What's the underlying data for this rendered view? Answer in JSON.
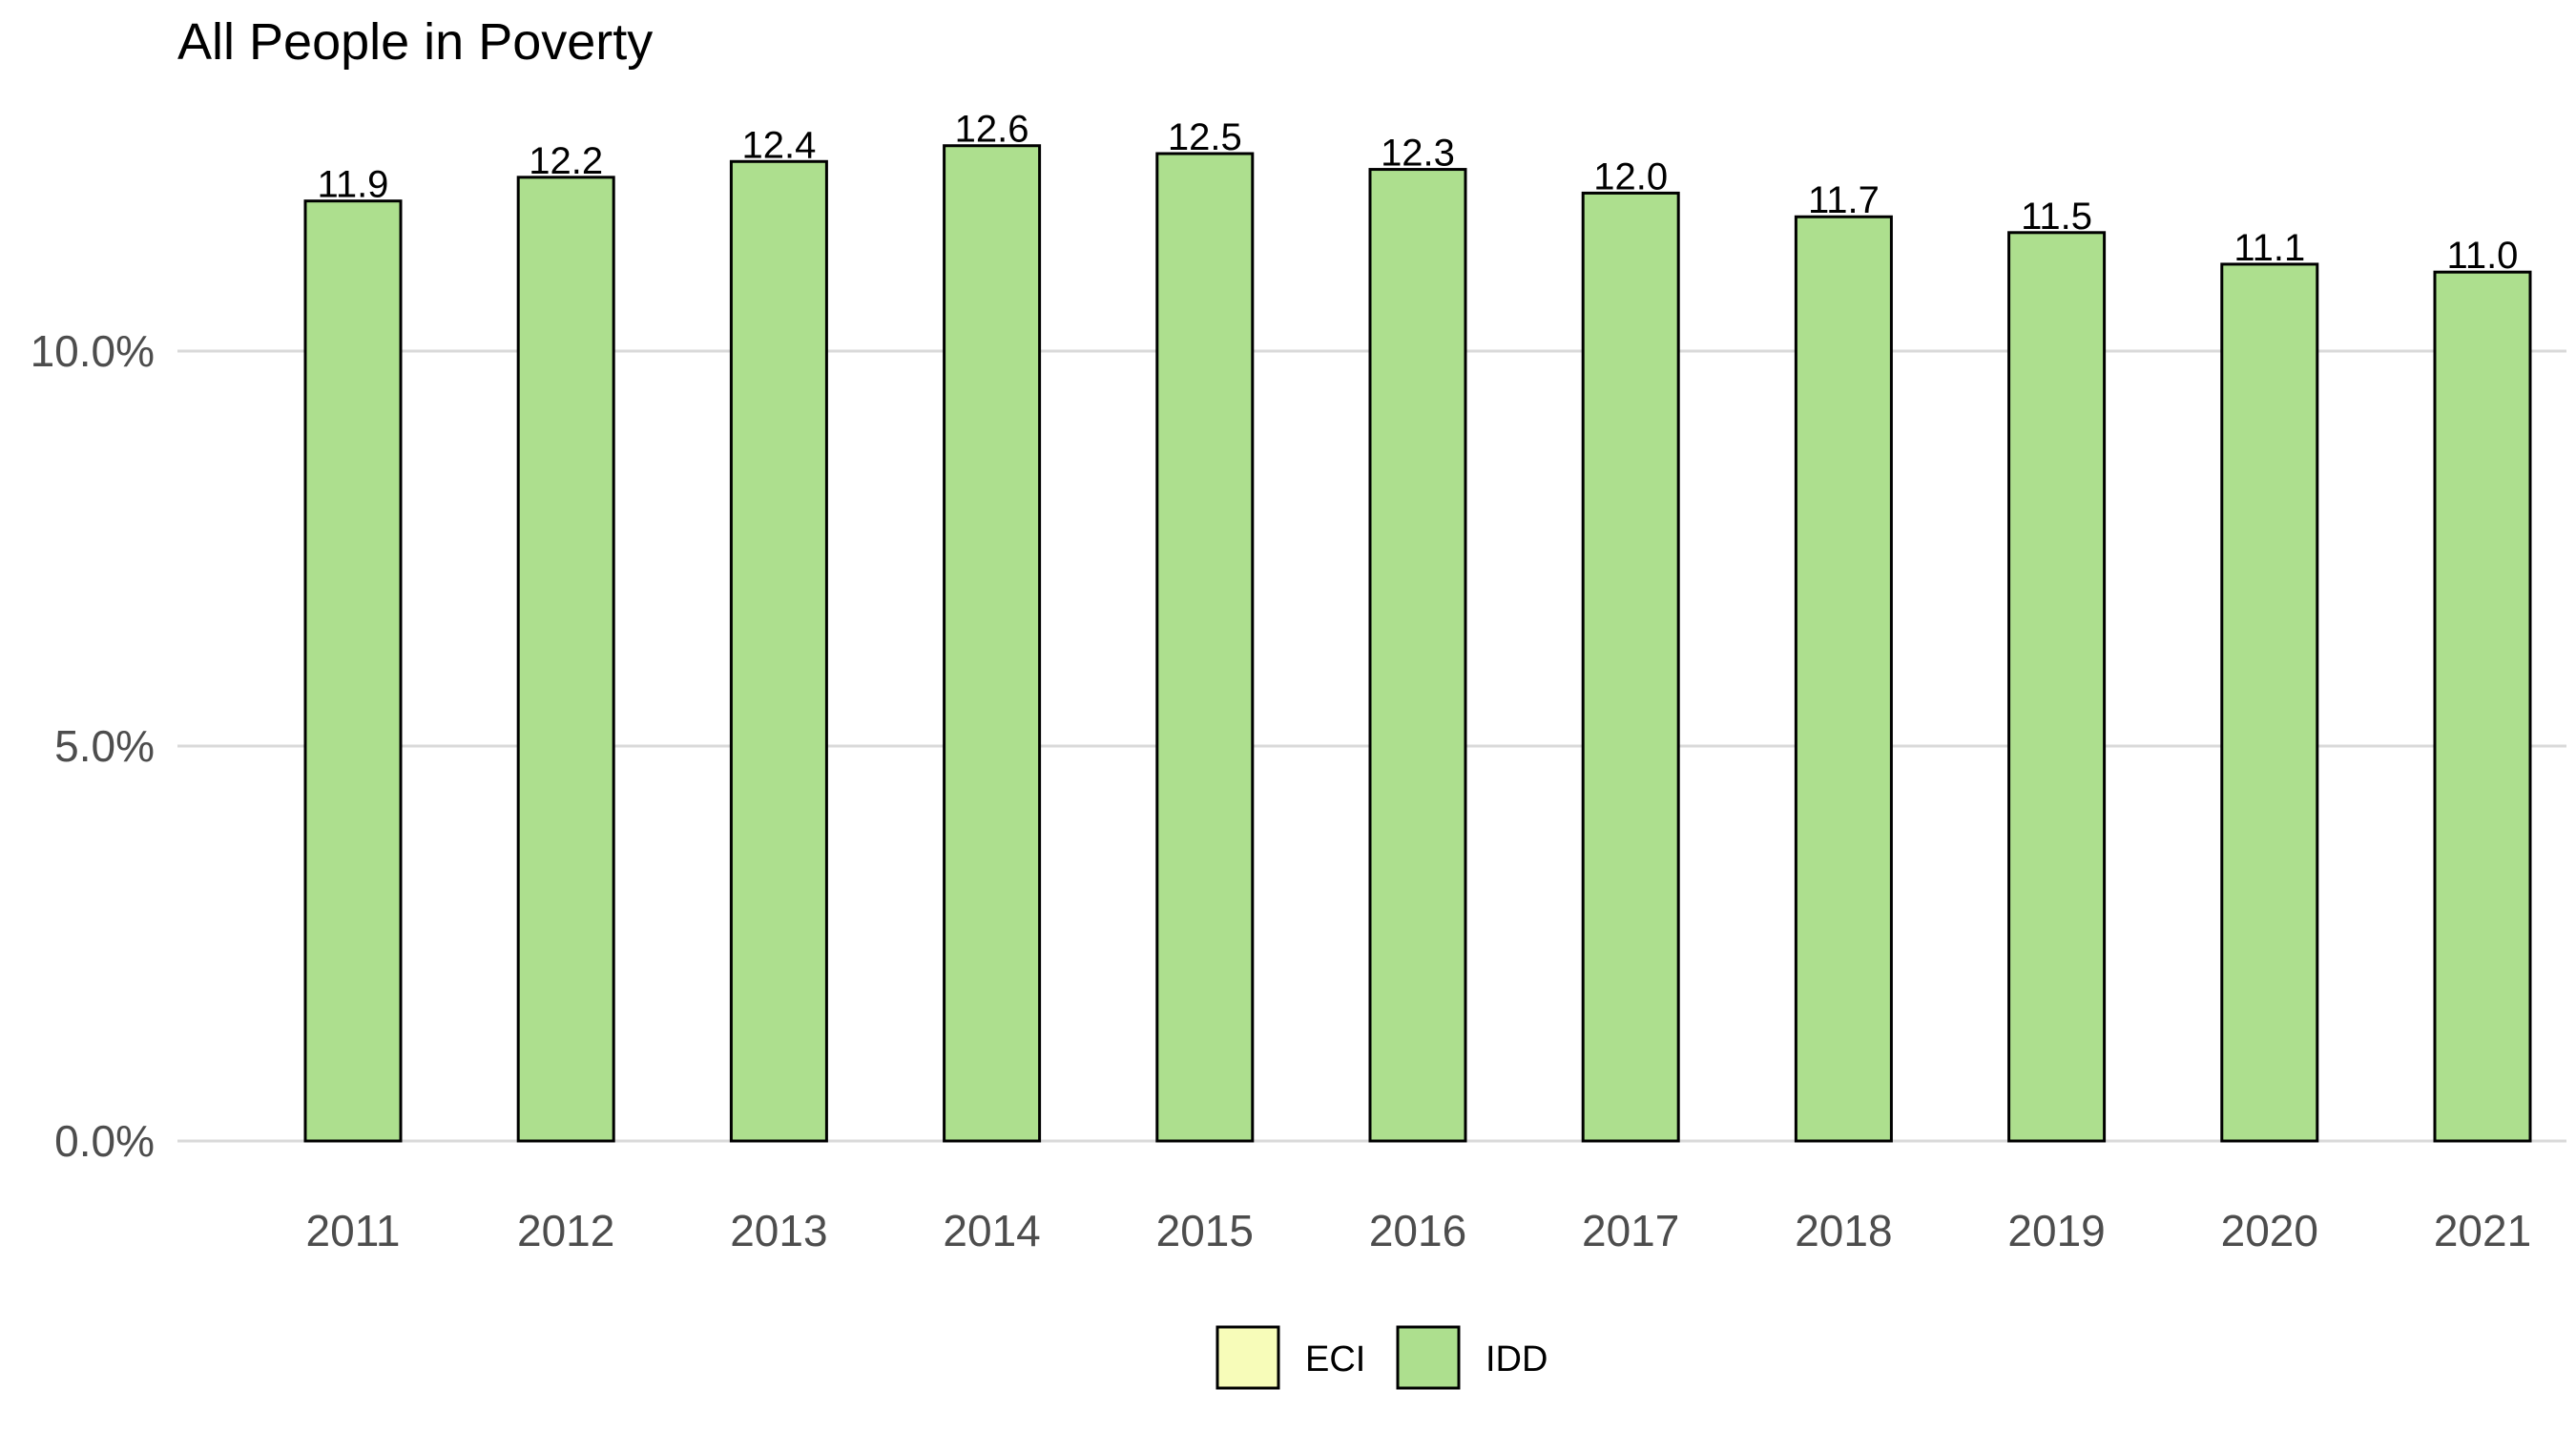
{
  "chart_data": {
    "type": "bar",
    "title": "All People in Poverty",
    "xlabel": "",
    "ylabel": "",
    "categories": [
      "2011",
      "2012",
      "2013",
      "2014",
      "2015",
      "2016",
      "2017",
      "2018",
      "2019",
      "2020",
      "2021"
    ],
    "series": [
      {
        "name": "IDD",
        "values": [
          11.9,
          12.2,
          12.4,
          12.6,
          12.5,
          12.3,
          12.0,
          11.7,
          11.5,
          11.1,
          11.0
        ],
        "data_labels": [
          "11.9",
          "12.2",
          "12.4",
          "12.6",
          "12.5",
          "12.3",
          "12.0",
          "11.7",
          "11.5",
          "11.1",
          "11.0"
        ],
        "color": "#addf8e"
      }
    ],
    "ylim": [
      0,
      13
    ],
    "yticks": [
      0,
      5,
      10
    ],
    "ytick_labels": [
      "0.0%",
      "5.0%",
      "10.0%"
    ],
    "grid": true,
    "legend": {
      "placement": "bottom",
      "entries": [
        {
          "label": "ECI",
          "color": "#f7fcb9"
        },
        {
          "label": "IDD",
          "color": "#addf8e"
        }
      ]
    },
    "bar_outline_color": "#000000",
    "grid_color": "#d9d9d9"
  }
}
